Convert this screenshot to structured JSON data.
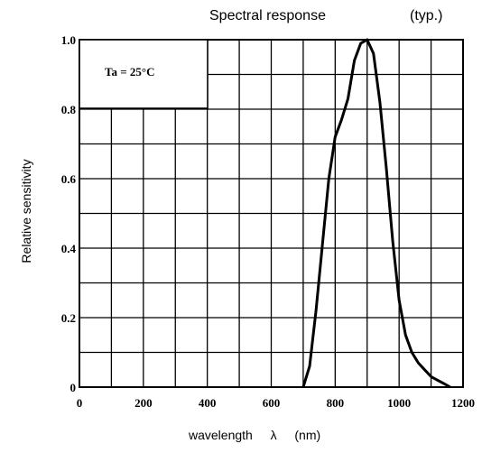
{
  "chart_data": {
    "type": "line",
    "title": "Spectral response",
    "title_note": "(typ.)",
    "xlabel": {
      "text": "wavelength",
      "symbol": "λ",
      "unit": "(nm)"
    },
    "ylabel": "Relative sensitivity",
    "xlim": [
      0,
      1200
    ],
    "ylim": [
      0,
      1.0
    ],
    "x_ticks": [
      "0",
      "200",
      "400",
      "600",
      "800",
      "1000",
      "1200"
    ],
    "y_ticks": [
      "0",
      "0.2",
      "0.4",
      "0.6",
      "0.8",
      "1.0"
    ],
    "grid": true,
    "annotation": "Ta = 25°C",
    "series": [
      {
        "x": [
          700,
          720,
          740,
          760,
          780,
          800,
          820,
          840,
          860,
          880,
          900,
          920,
          940,
          960,
          980,
          1000,
          1020,
          1040,
          1060,
          1080,
          1100,
          1120,
          1140,
          1160
        ],
        "y": [
          0.0,
          0.06,
          0.22,
          0.41,
          0.6,
          0.72,
          0.77,
          0.83,
          0.94,
          0.99,
          1.0,
          0.96,
          0.82,
          0.63,
          0.42,
          0.25,
          0.15,
          0.1,
          0.07,
          0.05,
          0.03,
          0.02,
          0.01,
          0.0
        ]
      }
    ]
  }
}
